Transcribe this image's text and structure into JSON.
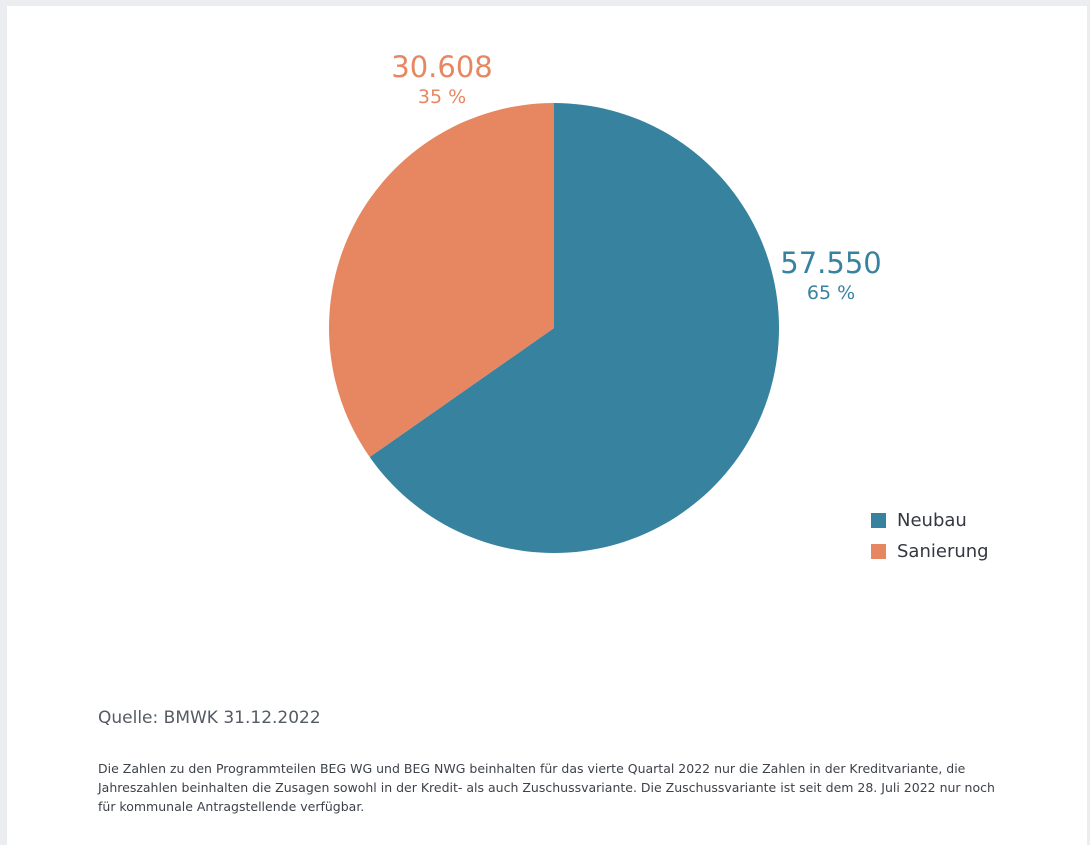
{
  "chart_data": {
    "type": "pie",
    "slices": [
      {
        "name": "Neubau",
        "value": 57550,
        "value_label": "57.550",
        "percent_label": "65 %",
        "color": "#37839f"
      },
      {
        "name": "Sanierung",
        "value": 30608,
        "value_label": "30.608",
        "percent_label": "35 %",
        "color": "#e78762"
      }
    ],
    "legend": {
      "placement": "bottom-right",
      "entries": [
        "Neubau",
        "Sanierung"
      ]
    },
    "title": ""
  },
  "source": "Quelle: BMWK 31.12.2022",
  "footnote": "Die Zahlen zu den Programmteilen BEG WG und BEG NWG beinhalten für das vierte Quartal 2022 nur die Zahlen in der Kreditvariante, die Jahreszahlen beinhalten die Zusagen sowohl in der Kredit- als auch Zuschussvariante. Die Zuschussvariante ist seit dem 28. Juli 2022 nur noch für kommunale Antragstellende verfügbar."
}
